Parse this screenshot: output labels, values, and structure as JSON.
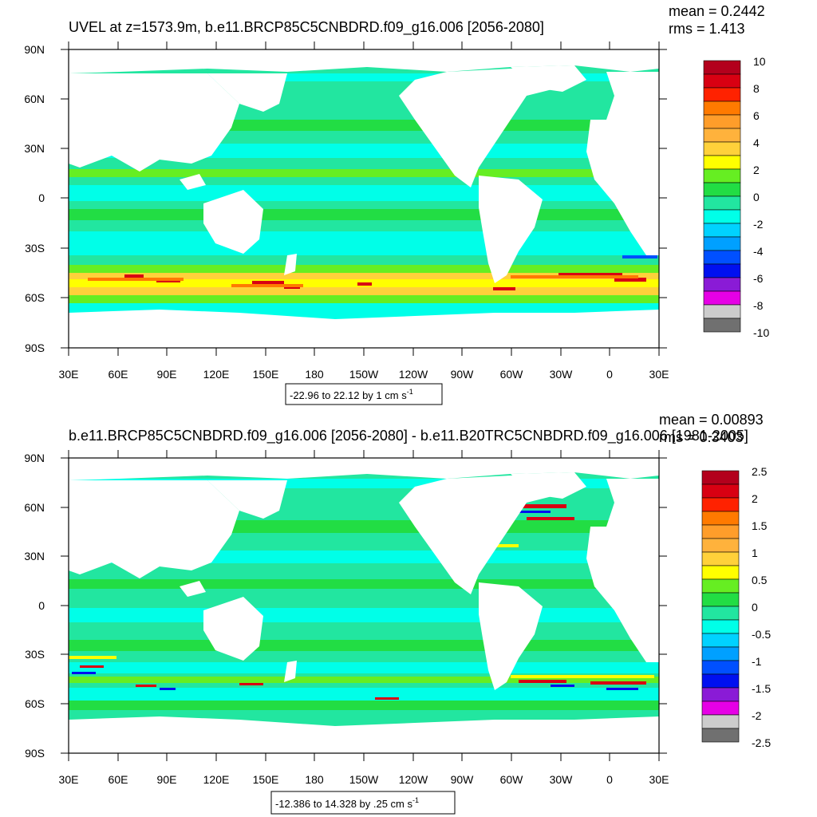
{
  "colors": {
    "land": "#ffffff",
    "frame": "#000000"
  },
  "chart_data": [
    {
      "type": "heatmap",
      "title": "UVEL at z=1573.9m, b.e11.BRCP85C5CNBDRD.f09_g16.006 [2056-2080]",
      "stats": {
        "mean": "mean = 0.2442",
        "rms": "rms = 1.413"
      },
      "x_tick_labels": [
        "30E",
        "60E",
        "90E",
        "120E",
        "150E",
        "180",
        "150W",
        "120W",
        "90W",
        "60W",
        "30W",
        "0",
        "30E"
      ],
      "y_tick_labels": [
        "90N",
        "60N",
        "30N",
        "0",
        "30S",
        "60S",
        "90S"
      ],
      "contour_info": "-22.96 to 22.12 by 1 cm s",
      "units_superscript": "-1",
      "colorbar": {
        "labels": [
          "10",
          "8",
          "6",
          "4",
          "2",
          "0",
          "-2",
          "-4",
          "-6",
          "-8",
          "-10"
        ],
        "colors": [
          "#b3001c",
          "#d80012",
          "#ff2200",
          "#ff7a00",
          "#ff9d2a",
          "#ffb23c",
          "#ffd13a",
          "#ffff00",
          "#66ee22",
          "#22dd44",
          "#22e6a0",
          "#00ffe8",
          "#00d2ff",
          "#00a0ff",
          "#0050ff",
          "#0010f0",
          "#8a1bd6",
          "#e600e6",
          "#cccccc",
          "#707070"
        ]
      },
      "field_palette": {
        "background": "#22e6a0",
        "stripes": [
          "#00ffe8",
          "#22dd44",
          "#66ee22"
        ]
      }
    },
    {
      "type": "heatmap",
      "title": "b.e11.BRCP85C5CNBDRD.f09_g16.006 [2056-2080] - b.e11.B20TRC5CNBDRD.f09_g16.006 [1981-2005]",
      "stats": {
        "mean": "mean = 0.00893",
        "rms": "rms = 0.3403"
      },
      "x_tick_labels": [
        "30E",
        "60E",
        "90E",
        "120E",
        "150E",
        "180",
        "150W",
        "120W",
        "90W",
        "60W",
        "30W",
        "0",
        "30E"
      ],
      "y_tick_labels": [
        "90N",
        "60N",
        "30N",
        "0",
        "30S",
        "60S",
        "90S"
      ],
      "contour_info": "-12.386 to 14.328 by .25 cm s",
      "units_superscript": "-1",
      "colorbar": {
        "labels": [
          "2.5",
          "2",
          "1.5",
          "1",
          "0.5",
          "0",
          "-0.5",
          "-1",
          "-1.5",
          "-2",
          "-2.5"
        ],
        "colors": [
          "#b3001c",
          "#d80012",
          "#ff2200",
          "#ff7a00",
          "#ff9d2a",
          "#ffb23c",
          "#ffd13a",
          "#ffff00",
          "#66ee22",
          "#22dd44",
          "#22e6a0",
          "#00ffe8",
          "#00d2ff",
          "#00a0ff",
          "#0050ff",
          "#0010f0",
          "#8a1bd6",
          "#e600e6",
          "#cccccc",
          "#707070"
        ]
      },
      "field_palette": {
        "background": "#22e6a0",
        "stripes": [
          "#00ffe8",
          "#22dd44",
          "#66ee22"
        ]
      }
    }
  ]
}
